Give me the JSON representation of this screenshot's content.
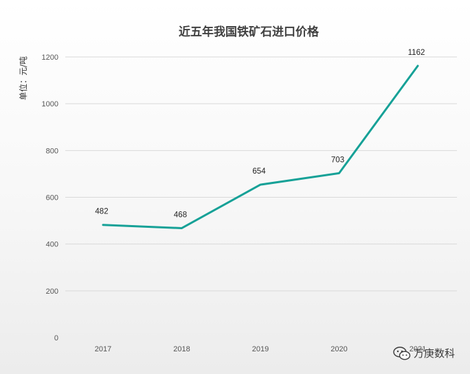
{
  "chart_data": {
    "type": "line",
    "title": "近五年我国铁矿石进口价格",
    "ylabel": "单位：元/吨",
    "xlabel": "",
    "categories": [
      "2017",
      "2018",
      "2019",
      "2020",
      "2021"
    ],
    "series": [
      {
        "values": [
          482,
          468,
          654,
          703,
          1162
        ]
      }
    ],
    "ylim": [
      0,
      1200
    ],
    "yticks": [
      0,
      200,
      400,
      600,
      800,
      1000,
      1200
    ],
    "grid": true,
    "line_color": "#16a197"
  },
  "watermark": {
    "text": "万庚数科",
    "icon": "wechat-icon"
  }
}
